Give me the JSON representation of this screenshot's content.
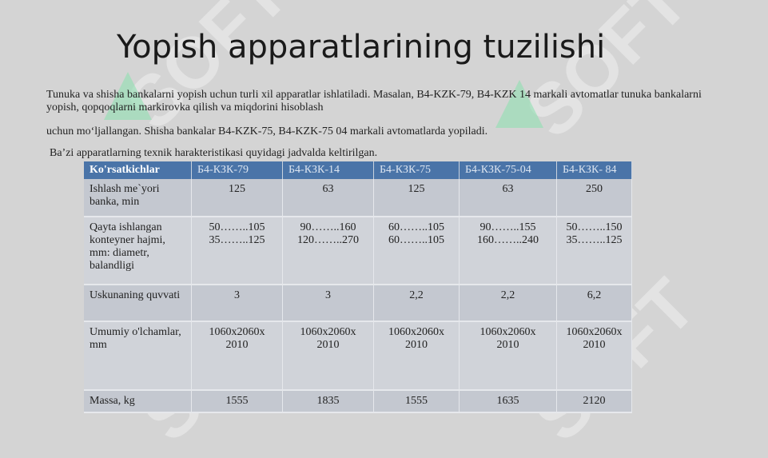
{
  "slide": {
    "title": "Yopish apparatlarining tuzilishi",
    "paragraph_1": "Tunuka va shisha bankalarni yopish uchun turli xil apparatlar ishlatiladi. Masalan, B4-KZK-79, B4-KZK 14 markali avtomatlar tunuka bankalarni yopish,  qopqoqlarni markirovka qilish va miqdorini hisoblash",
    "paragraph_2": "uchun mo‘ljallangan. Shisha bankalar B4-KZK-75, B4-KZK-75 04  markali  avtomatlarda yopiladi.",
    "paragraph_3": "Ba’zi apparatlarning texnik harakteristikasi quyidagi jadvalda keltirilgan."
  },
  "table": {
    "headers": [
      "Ko'rsatkichlar",
      "Б4-КЗК-79",
      "Б4-КЗК-14",
      "Б4-КЗК-75",
      "Б4-КЗК-75-04",
      "Б4-КЗК- 84"
    ],
    "rows": [
      {
        "label": "Ishlash me`yori banka, min",
        "values": [
          "125",
          "63",
          "125",
          "63",
          "250"
        ]
      },
      {
        "label": "Qayta ishlangan konteyner hajmi, mm: diametr, balandligi",
        "values": [
          [
            "50……..105",
            "35……..125"
          ],
          [
            "90……..160",
            "120……..270"
          ],
          [
            "60……..105",
            "60……..105"
          ],
          [
            "90……..155",
            "160……..240"
          ],
          [
            "50……..150",
            "35……..125"
          ]
        ]
      },
      {
        "label": "Uskunaning quvvati",
        "values": [
          "3",
          "3",
          "2,2",
          "2,2",
          "6,2"
        ]
      },
      {
        "label": "Umumiy o'lchamlar, mm",
        "values": [
          [
            "1060x2060x",
            "2010"
          ],
          [
            "1060x2060x",
            "2010"
          ],
          [
            "1060x2060x",
            "2010"
          ],
          [
            "1060x2060x",
            "2010"
          ],
          [
            "1060x2060x",
            "2010"
          ]
        ]
      },
      {
        "label": "Massa, kg",
        "values": [
          "1555",
          "1835",
          "1555",
          "1635",
          "2120"
        ]
      }
    ]
  },
  "watermark": {
    "text": "SOFT",
    "colors": {
      "text": "#ffffff",
      "arrow": "#8fe0b0"
    }
  }
}
